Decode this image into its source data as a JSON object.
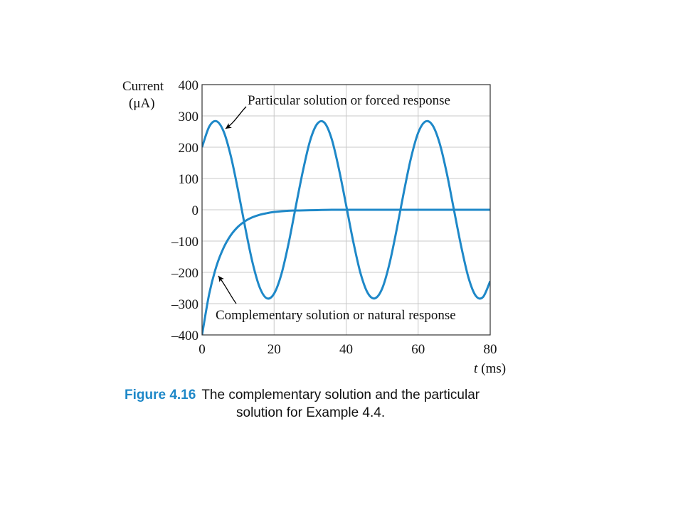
{
  "chart_data": {
    "type": "line",
    "x_label_var": "t",
    "x_label_unit": "(ms)",
    "y_label_line1": "Current",
    "y_label_line2": "(μA)",
    "xlim": [
      0,
      80
    ],
    "ylim": [
      -400,
      400
    ],
    "x_ticks": [
      "0",
      "20",
      "40",
      "60",
      "80"
    ],
    "y_ticks": [
      "400",
      "300",
      "200",
      "100",
      "0",
      "–100",
      "–200",
      "–300",
      "–400"
    ],
    "grid": true,
    "series_color": "#1e88c8",
    "series": [
      {
        "name": "Particular solution or forced response",
        "x": [
          0,
          2,
          4,
          6,
          8,
          10,
          12,
          14,
          16,
          18,
          20,
          22,
          24,
          26,
          28,
          30,
          32,
          34,
          36,
          38,
          40,
          42,
          44,
          46,
          48,
          50,
          52,
          54,
          56,
          58,
          60,
          62,
          64,
          66,
          68,
          70,
          72,
          74,
          76,
          78,
          80
        ],
        "y": [
          200,
          266,
          283,
          250,
          171,
          62,
          -58,
          -168,
          -248,
          -283,
          -268,
          -207,
          -109,
          9,
          124,
          221,
          275,
          278,
          226,
          130,
          15,
          -103,
          -203,
          -266,
          -283,
          -252,
          -174,
          -65,
          55,
          165,
          246,
          282,
          270,
          211,
          114,
          -4,
          -120,
          -218,
          -275,
          -279,
          -228
        ]
      },
      {
        "name": "Complementary solution or natural response",
        "x": [
          0,
          2,
          4,
          6,
          8,
          10,
          12,
          14,
          16,
          18,
          20,
          24,
          28,
          32,
          36,
          40,
          50,
          60,
          70,
          80
        ],
        "y": [
          -400,
          -268,
          -180,
          -121,
          -81,
          -54,
          -36,
          -24,
          -16,
          -11,
          -7,
          -3,
          -2,
          -1,
          0,
          0,
          0,
          0,
          0,
          0
        ]
      }
    ],
    "annotations": [
      {
        "text": "Particular solution or forced response",
        "target_x": 4.2,
        "target_y": 253
      },
      {
        "text": "Complementary solution or natural response",
        "target_x": 4.3,
        "target_y": -195
      }
    ]
  },
  "caption": {
    "label": "Figure 4.16",
    "line1": "The complementary solution and the particular",
    "line2": "solution for Example 4.4."
  }
}
